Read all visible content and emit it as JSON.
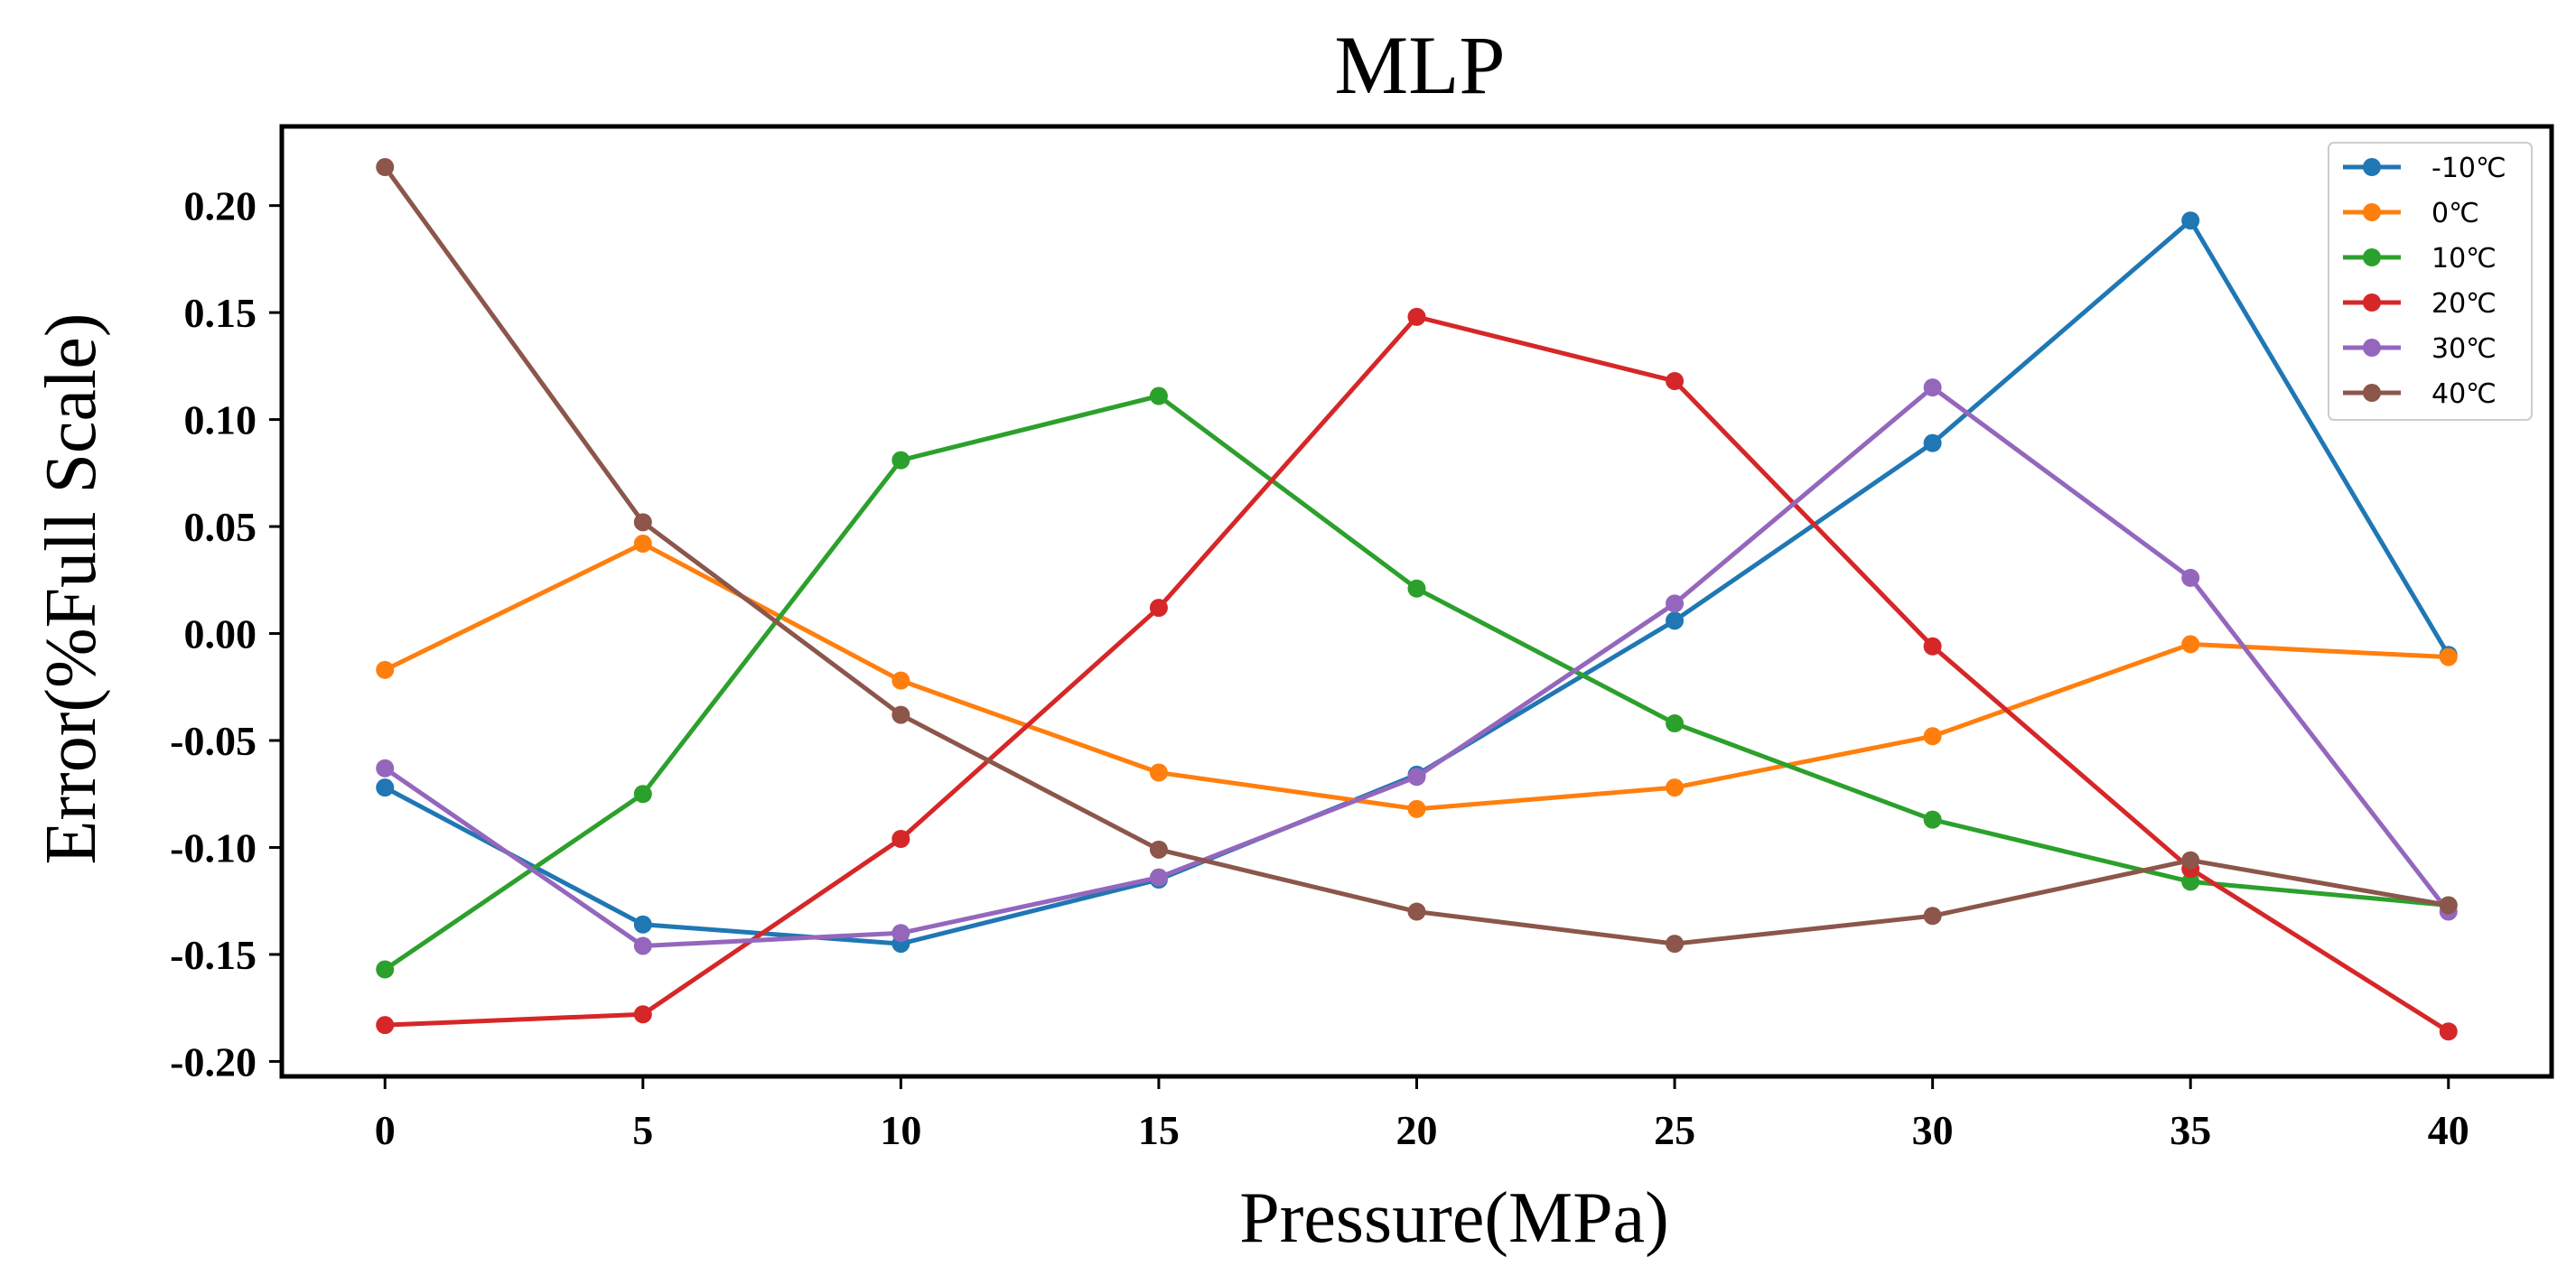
{
  "chart_data": {
    "type": "line",
    "title": "MLP",
    "xlabel": "Pressure(MPa)",
    "ylabel": "Error(%Full Scale)",
    "x": [
      0,
      5,
      10,
      15,
      20,
      25,
      30,
      35,
      40
    ],
    "xlim": [
      -2,
      42
    ],
    "ylim": [
      -0.207,
      0.237
    ],
    "xticks": [
      0,
      5,
      10,
      15,
      20,
      25,
      30,
      35,
      40
    ],
    "xtick_labels": [
      "0",
      "5",
      "10",
      "15",
      "20",
      "25",
      "30",
      "35",
      "40"
    ],
    "yticks": [
      -0.2,
      -0.15,
      -0.1,
      -0.05,
      0.0,
      0.05,
      0.1,
      0.15,
      0.2
    ],
    "ytick_labels": [
      "-0.20",
      "-0.15",
      "-0.10",
      "-0.05",
      "0.00",
      "0.05",
      "0.10",
      "0.15",
      "0.20"
    ],
    "grid": false,
    "legend_position": "top-right",
    "series": [
      {
        "name": "-10℃",
        "color": "#1f77b4",
        "values": [
          -0.072,
          -0.136,
          -0.145,
          -0.115,
          -0.066,
          0.006,
          0.089,
          0.193,
          -0.01
        ]
      },
      {
        "name": "0℃",
        "color": "#ff7f0e",
        "values": [
          -0.017,
          0.042,
          -0.022,
          -0.065,
          -0.082,
          -0.072,
          -0.048,
          -0.005,
          -0.011
        ]
      },
      {
        "name": "10℃",
        "color": "#2ca02c",
        "values": [
          -0.157,
          -0.075,
          0.081,
          0.111,
          0.021,
          -0.042,
          -0.087,
          -0.116,
          -0.127
        ]
      },
      {
        "name": "20℃",
        "color": "#d62728",
        "values": [
          -0.183,
          -0.178,
          -0.096,
          0.012,
          0.148,
          0.118,
          -0.006,
          -0.11,
          -0.186
        ]
      },
      {
        "name": "30℃",
        "color": "#9467bd",
        "values": [
          -0.063,
          -0.146,
          -0.14,
          -0.114,
          -0.067,
          0.014,
          0.115,
          0.026,
          -0.13
        ]
      },
      {
        "name": "40℃",
        "color": "#8c564b",
        "values": [
          0.218,
          0.052,
          -0.038,
          -0.101,
          -0.13,
          -0.145,
          -0.132,
          -0.106,
          -0.127
        ]
      }
    ]
  }
}
